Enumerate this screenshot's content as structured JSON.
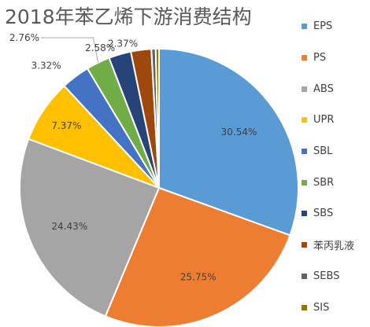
{
  "chart_data": {
    "type": "pie",
    "title": "2018年苯乙烯下游消费结构",
    "legend_position": "right",
    "categories": [
      "EPS",
      "PS",
      "ABS",
      "UPR",
      "SBL",
      "SBR",
      "SBS",
      "苯丙乳液",
      "SEBS",
      "SIS"
    ],
    "values": [
      30.54,
      25.75,
      24.43,
      7.37,
      3.32,
      2.76,
      2.58,
      2.37,
      0.5,
      0.38
    ],
    "data_labels": [
      "30.54%",
      "25.75%",
      "24.43%",
      "7.37%",
      "3.32%",
      "2.76%",
      "2.58%",
      "2.37%",
      "",
      ""
    ],
    "colors": [
      "#5B9BD5",
      "#ED7D31",
      "#A5A5A5",
      "#FFC000",
      "#4472C4",
      "#70AD47",
      "#264478",
      "#9E480E",
      "#636363",
      "#997300"
    ]
  }
}
